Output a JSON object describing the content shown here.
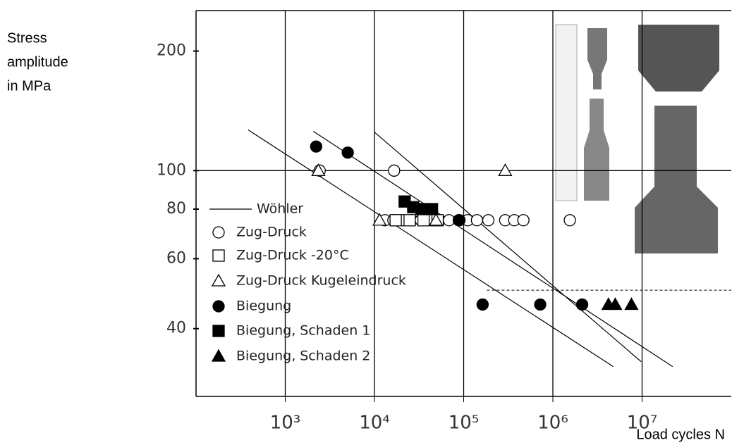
{
  "chart_data": {
    "type": "scatter",
    "ylabel": [
      "Stress",
      "amplitude",
      "in MPa"
    ],
    "xlabel": "Load cycles N",
    "xscale": "log",
    "yscale": "log",
    "xlim": [
      100,
      100000000
    ],
    "ylim": [
      27,
      253
    ],
    "xticks": [
      {
        "value": 1000,
        "label": "10³"
      },
      {
        "value": 10000,
        "label": "10⁴"
      },
      {
        "value": 100000,
        "label": "10⁵"
      },
      {
        "value": 1000000,
        "label": "10⁶"
      },
      {
        "value": 10000000,
        "label": "10⁷"
      }
    ],
    "yticks": [
      40,
      60,
      80,
      100,
      200
    ],
    "grid": true,
    "ygrid": [
      100
    ],
    "legend": "lower-left",
    "hline": {
      "value": 50,
      "x_start": 182000,
      "style": "dashed"
    },
    "series": [
      {
        "name": "Wöhler",
        "marker": "line",
        "color": "#000000",
        "x": [
          383,
          4750000,
          null,
          2065,
          22000000,
          null,
          10000,
          9800000
        ],
        "values": [
          126.7,
          32.1,
          null,
          125.6,
          32.1,
          null,
          125,
          33
        ]
      },
      {
        "name": "Zug-Druck",
        "marker": "circle-open",
        "color": "#000000",
        "x": [
          2430,
          16600,
          13100,
          16300,
          20600,
          26100,
          33100,
          42700,
          54000,
          68400,
          88100,
          111000,
          141000,
          189000,
          292000,
          369000,
          467000,
          1550000
        ],
        "values": [
          100,
          100,
          75,
          75,
          75,
          75,
          75,
          75,
          75,
          75,
          75,
          75,
          75,
          75,
          75,
          75,
          75,
          75
        ]
      },
      {
        "name": "Zug-Druck -20°C",
        "marker": "square-open",
        "color": "#000000",
        "x": [
          17300,
          24800,
          35500,
          51000
        ],
        "values": [
          75,
          75,
          75,
          75
        ]
      },
      {
        "name": "Zug-Druck Kugeleindruck",
        "marker": "triangle-open",
        "color": "#000000",
        "x": [
          2350,
          11400,
          49000,
          292000
        ],
        "values": [
          100,
          75,
          75,
          100
        ]
      },
      {
        "name": "Biegung",
        "marker": "circle",
        "color": "#000000",
        "x": [
          2220,
          5020,
          89700,
          163000,
          721000,
          2130000
        ],
        "values": [
          115,
          111,
          75,
          46,
          46,
          46
        ]
      },
      {
        "name": "Biegung, Schaden 1",
        "marker": "square",
        "color": "#000000",
        "x": [
          21800,
          27200,
          33700,
          44200
        ],
        "values": [
          83.6,
          80.9,
          80,
          80
        ]
      },
      {
        "name": "Biegung, Schaden 2",
        "marker": "triangle",
        "color": "#000000",
        "x": [
          4200000,
          5000000,
          7600000
        ],
        "values": [
          46,
          46,
          46
        ]
      }
    ]
  }
}
